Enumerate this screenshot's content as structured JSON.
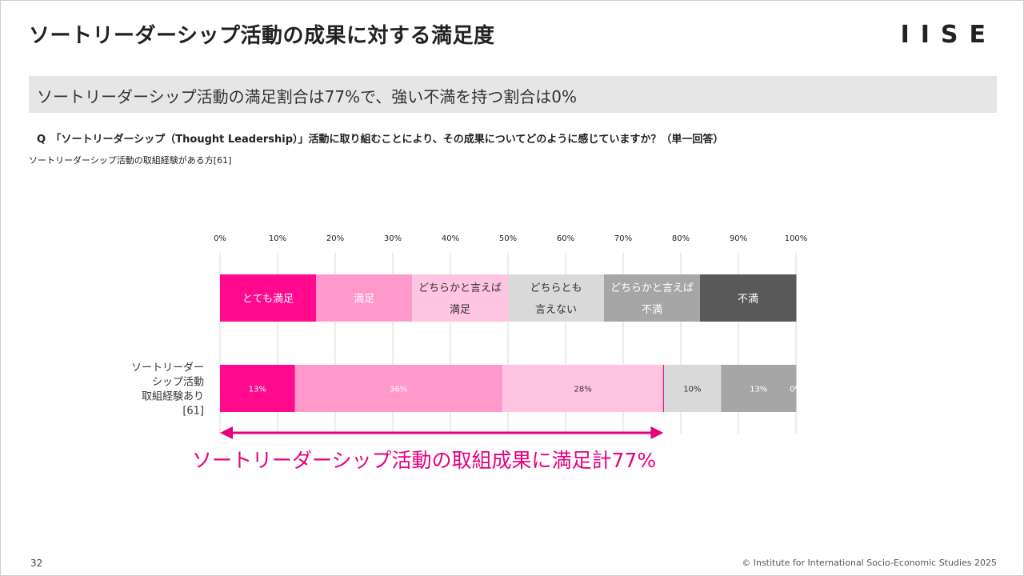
{
  "page": {
    "title": "ソートリーダーシップ活動の成果に対する満足度",
    "logo_text": "IISE",
    "subtitle": "ソートリーダーシップ活動の満足割合は77%で、強い不満を持つ割合は0%",
    "question": "Q　「ソートリーダーシップ（Thought Leadership）」活動に取り組むことにより、その成果についてどのように感じていますか？（単一回答）",
    "base_note": "ソートリーダーシップ活動の取組経験がある方[61]",
    "page_number": "32",
    "copyright": "© Institute for International Socio-Economic Studies 2025"
  },
  "chart_data": {
    "type": "bar",
    "orientation": "horizontal",
    "stacked": true,
    "x_tick_labels": [
      "0%",
      "10%",
      "20%",
      "30%",
      "40%",
      "50%",
      "60%",
      "70%",
      "80%",
      "90%",
      "100%"
    ],
    "xlim": [
      0,
      100
    ],
    "grid": true,
    "legend_position": "top",
    "categories": [
      {
        "lines": [
          "ソートリーダー",
          "シップ活動",
          "取組経験あり",
          "[61]"
        ]
      }
    ],
    "series": [
      {
        "name": "とても満足",
        "legend_lines": [
          "とても満足"
        ],
        "values": [
          13
        ],
        "label": "13%",
        "color": "#ff0a8c",
        "legend_text_color": "#ffffff",
        "value_text_color": "#ffffff"
      },
      {
        "name": "満足",
        "legend_lines": [
          "満足"
        ],
        "values": [
          36
        ],
        "label": "36%",
        "color": "#ff99cc",
        "legend_text_color": "#ffffff",
        "value_text_color": "#ffffff"
      },
      {
        "name": "どちらかと言えば満足",
        "legend_lines": [
          "どちらかと言えば",
          "満足"
        ],
        "values": [
          28
        ],
        "label": "28%",
        "color": "#ffc4e2",
        "legend_text_color": "#333333",
        "value_text_color": "#333333"
      },
      {
        "name": "どちらとも言えない",
        "legend_lines": [
          "どちらとも",
          "言えない"
        ],
        "values": [
          10
        ],
        "label": "10%",
        "color": "#d9d9d9",
        "legend_text_color": "#333333",
        "value_text_color": "#333333"
      },
      {
        "name": "どちらかと言えば不満",
        "legend_lines": [
          "どちらかと言えば",
          "不満"
        ],
        "values": [
          13
        ],
        "label": "13%",
        "color": "#a6a6a6",
        "legend_text_color": "#ffffff",
        "value_text_color": "#ffffff"
      },
      {
        "name": "不満",
        "legend_lines": [
          "不満"
        ],
        "values": [
          0
        ],
        "label": "0%",
        "color": "#595959",
        "legend_text_color": "#ffffff",
        "value_text_color": "#ffffff"
      }
    ],
    "annotation": {
      "text": "ソートリーダーシップ活動の取組成果に満足計77%",
      "value": 77,
      "color": "#e6007e"
    }
  }
}
